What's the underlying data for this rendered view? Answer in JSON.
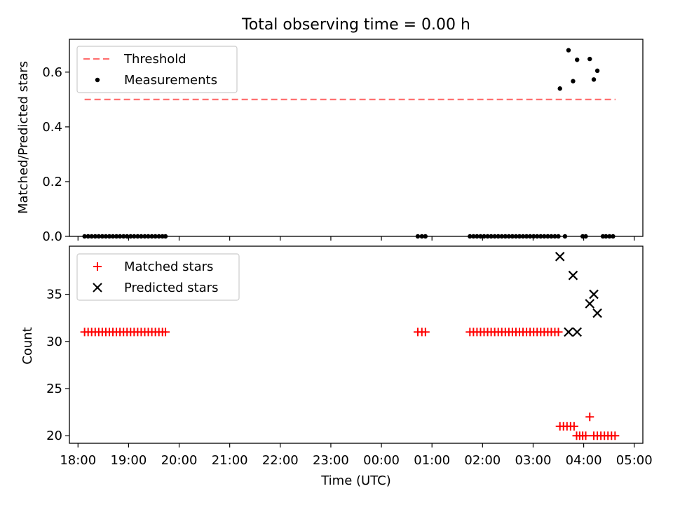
{
  "chart_data": [
    {
      "type": "scatter",
      "title": "Total observing time = 0.00 h",
      "ylabel": "Matched/Predicted stars",
      "xlabel": "",
      "xlim": [
        17.83,
        29.17
      ],
      "ylim": [
        0.0,
        0.72
      ],
      "x_tick_hours": [
        18,
        19,
        20,
        21,
        22,
        23,
        24,
        25,
        26,
        27,
        28,
        29
      ],
      "y_ticks": [
        "0.0",
        "0.2",
        "0.4",
        "0.6"
      ],
      "y_tick_values": [
        0.0,
        0.2,
        0.4,
        0.6
      ],
      "legend_position": "upper left",
      "threshold": {
        "name": "Threshold",
        "value": 0.5,
        "x_range": [
          18.13,
          28.63
        ],
        "color": "#ff7070",
        "style": "dashed"
      },
      "series": [
        {
          "name": "Measurements",
          "marker": "dot",
          "color": "#000000",
          "points": [
            [
              18.13,
              0
            ],
            [
              18.2,
              0
            ],
            [
              18.27,
              0
            ],
            [
              18.34,
              0
            ],
            [
              18.41,
              0
            ],
            [
              18.48,
              0
            ],
            [
              18.55,
              0
            ],
            [
              18.62,
              0
            ],
            [
              18.69,
              0
            ],
            [
              18.76,
              0
            ],
            [
              18.83,
              0
            ],
            [
              18.9,
              0
            ],
            [
              18.97,
              0
            ],
            [
              19.04,
              0
            ],
            [
              19.11,
              0
            ],
            [
              19.18,
              0
            ],
            [
              19.25,
              0
            ],
            [
              19.32,
              0
            ],
            [
              19.39,
              0
            ],
            [
              19.46,
              0
            ],
            [
              19.53,
              0
            ],
            [
              19.6,
              0
            ],
            [
              19.67,
              0
            ],
            [
              19.73,
              0
            ],
            [
              24.72,
              0
            ],
            [
              24.8,
              0
            ],
            [
              24.87,
              0
            ],
            [
              25.75,
              0
            ],
            [
              25.82,
              0
            ],
            [
              25.89,
              0
            ],
            [
              25.96,
              0
            ],
            [
              26.03,
              0
            ],
            [
              26.1,
              0
            ],
            [
              26.17,
              0
            ],
            [
              26.24,
              0
            ],
            [
              26.31,
              0
            ],
            [
              26.38,
              0
            ],
            [
              26.45,
              0
            ],
            [
              26.52,
              0
            ],
            [
              26.59,
              0
            ],
            [
              26.66,
              0
            ],
            [
              26.73,
              0
            ],
            [
              26.8,
              0
            ],
            [
              26.87,
              0
            ],
            [
              26.94,
              0
            ],
            [
              27.01,
              0
            ],
            [
              27.08,
              0
            ],
            [
              27.15,
              0
            ],
            [
              27.22,
              0
            ],
            [
              27.29,
              0
            ],
            [
              27.36,
              0
            ],
            [
              27.43,
              0
            ],
            [
              27.5,
              0
            ],
            [
              27.63,
              0
            ],
            [
              27.98,
              0
            ],
            [
              28.04,
              0
            ],
            [
              28.38,
              0
            ],
            [
              28.44,
              0
            ],
            [
              28.51,
              0
            ],
            [
              28.58,
              0
            ],
            [
              27.53,
              0.54
            ],
            [
              27.7,
              0.68
            ],
            [
              27.79,
              0.567
            ],
            [
              27.87,
              0.645
            ],
            [
              28.12,
              0.648
            ],
            [
              28.2,
              0.573
            ],
            [
              28.27,
              0.605
            ]
          ]
        }
      ]
    },
    {
      "type": "scatter",
      "title": "",
      "ylabel": "Count",
      "xlabel": "Time (UTC)",
      "xlim": [
        17.83,
        29.17
      ],
      "ylim": [
        19.2,
        40.1
      ],
      "x_tick_hours": [
        18,
        19,
        20,
        21,
        22,
        23,
        24,
        25,
        26,
        27,
        28,
        29
      ],
      "x_ticks": [
        "18:00",
        "19:00",
        "20:00",
        "21:00",
        "22:00",
        "23:00",
        "00:00",
        "01:00",
        "02:00",
        "03:00",
        "04:00",
        "05:00"
      ],
      "y_ticks": [
        "20",
        "25",
        "30",
        "35"
      ],
      "y_tick_values": [
        20,
        25,
        30,
        35
      ],
      "legend_position": "upper left",
      "series": [
        {
          "name": "Matched stars",
          "marker": "plus",
          "color": "#ff0000",
          "points": [
            [
              18.13,
              31
            ],
            [
              18.2,
              31
            ],
            [
              18.27,
              31
            ],
            [
              18.34,
              31
            ],
            [
              18.41,
              31
            ],
            [
              18.48,
              31
            ],
            [
              18.55,
              31
            ],
            [
              18.62,
              31
            ],
            [
              18.69,
              31
            ],
            [
              18.76,
              31
            ],
            [
              18.83,
              31
            ],
            [
              18.9,
              31
            ],
            [
              18.97,
              31
            ],
            [
              19.04,
              31
            ],
            [
              19.11,
              31
            ],
            [
              19.18,
              31
            ],
            [
              19.25,
              31
            ],
            [
              19.32,
              31
            ],
            [
              19.39,
              31
            ],
            [
              19.46,
              31
            ],
            [
              19.53,
              31
            ],
            [
              19.6,
              31
            ],
            [
              19.67,
              31
            ],
            [
              19.73,
              31
            ],
            [
              24.72,
              31
            ],
            [
              24.8,
              31
            ],
            [
              24.87,
              31
            ],
            [
              25.75,
              31
            ],
            [
              25.82,
              31
            ],
            [
              25.89,
              31
            ],
            [
              25.96,
              31
            ],
            [
              26.03,
              31
            ],
            [
              26.1,
              31
            ],
            [
              26.17,
              31
            ],
            [
              26.24,
              31
            ],
            [
              26.31,
              31
            ],
            [
              26.38,
              31
            ],
            [
              26.45,
              31
            ],
            [
              26.52,
              31
            ],
            [
              26.59,
              31
            ],
            [
              26.66,
              31
            ],
            [
              26.73,
              31
            ],
            [
              26.8,
              31
            ],
            [
              26.87,
              31
            ],
            [
              26.94,
              31
            ],
            [
              27.01,
              31
            ],
            [
              27.08,
              31
            ],
            [
              27.15,
              31
            ],
            [
              27.22,
              31
            ],
            [
              27.29,
              31
            ],
            [
              27.36,
              31
            ],
            [
              27.43,
              31
            ],
            [
              27.5,
              31
            ],
            [
              27.53,
              21
            ],
            [
              27.6,
              21
            ],
            [
              27.67,
              21
            ],
            [
              27.74,
              21
            ],
            [
              27.81,
              21
            ],
            [
              27.86,
              20
            ],
            [
              27.92,
              20
            ],
            [
              27.98,
              20
            ],
            [
              28.04,
              20
            ],
            [
              28.12,
              22
            ],
            [
              28.2,
              20
            ],
            [
              28.27,
              20
            ],
            [
              28.34,
              20
            ],
            [
              28.41,
              20
            ],
            [
              28.48,
              20
            ],
            [
              28.55,
              20
            ],
            [
              28.62,
              20
            ]
          ]
        },
        {
          "name": "Predicted stars",
          "marker": "x",
          "color": "#000000",
          "points": [
            [
              27.53,
              39
            ],
            [
              27.7,
              31
            ],
            [
              27.79,
              37
            ],
            [
              27.87,
              31
            ],
            [
              28.12,
              34
            ],
            [
              28.2,
              35
            ],
            [
              28.27,
              33
            ]
          ]
        }
      ]
    }
  ]
}
